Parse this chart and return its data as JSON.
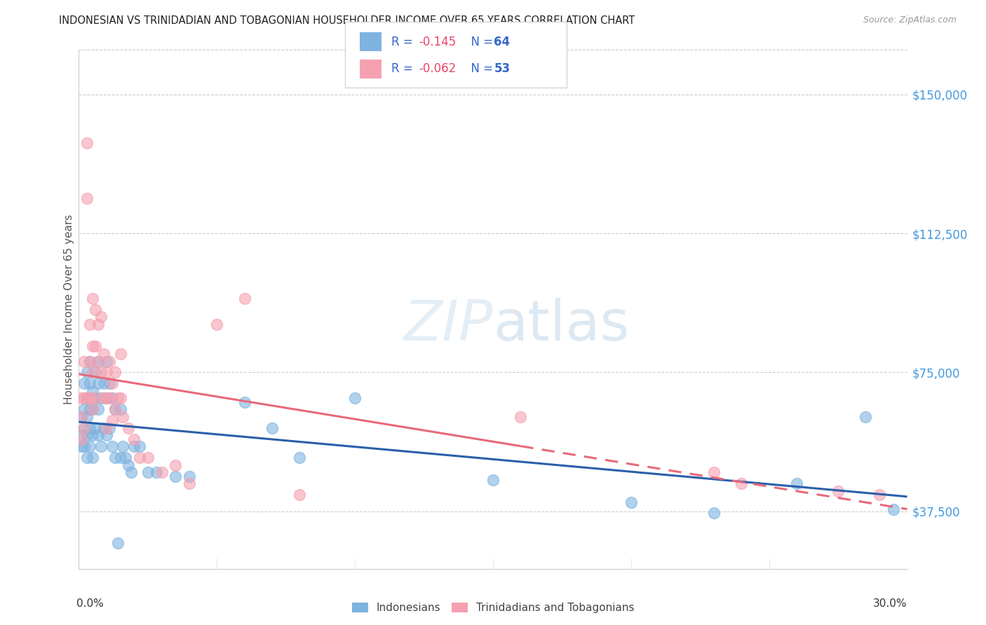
{
  "title": "INDONESIAN VS TRINIDADIAN AND TOBAGONIAN HOUSEHOLDER INCOME OVER 65 YEARS CORRELATION CHART",
  "source": "Source: ZipAtlas.com",
  "ylabel": "Householder Income Over 65 years",
  "yticks": [
    37500,
    75000,
    112500,
    150000
  ],
  "ytick_labels": [
    "$37,500",
    "$75,000",
    "$112,500",
    "$150,000"
  ],
  "xmin": 0.0,
  "xmax": 0.3,
  "ymin": 22000,
  "ymax": 162000,
  "blue_color": "#7eb3e0",
  "pink_color": "#f5a0b0",
  "blue_line_color": "#2b5faa",
  "pink_line_color": "#e8697a",
  "grid_color": "#cccccc",
  "indonesian_x": [
    0.001,
    0.001,
    0.001,
    0.002,
    0.002,
    0.002,
    0.002,
    0.003,
    0.003,
    0.003,
    0.003,
    0.003,
    0.004,
    0.004,
    0.004,
    0.004,
    0.004,
    0.005,
    0.005,
    0.005,
    0.005,
    0.006,
    0.006,
    0.006,
    0.007,
    0.007,
    0.007,
    0.007,
    0.008,
    0.008,
    0.009,
    0.009,
    0.01,
    0.01,
    0.01,
    0.011,
    0.011,
    0.012,
    0.012,
    0.013,
    0.013,
    0.014,
    0.015,
    0.015,
    0.016,
    0.017,
    0.018,
    0.019,
    0.02,
    0.022,
    0.025,
    0.028,
    0.035,
    0.04,
    0.06,
    0.07,
    0.08,
    0.1,
    0.15,
    0.2,
    0.23,
    0.26,
    0.285,
    0.295
  ],
  "indonesian_y": [
    63000,
    58000,
    55000,
    72000,
    65000,
    60000,
    55000,
    75000,
    68000,
    63000,
    58000,
    52000,
    78000,
    72000,
    65000,
    60000,
    55000,
    70000,
    65000,
    58000,
    52000,
    75000,
    68000,
    60000,
    78000,
    72000,
    65000,
    58000,
    68000,
    55000,
    72000,
    60000,
    78000,
    68000,
    58000,
    72000,
    60000,
    68000,
    55000,
    65000,
    52000,
    29000,
    65000,
    52000,
    55000,
    52000,
    50000,
    48000,
    55000,
    55000,
    48000,
    48000,
    47000,
    47000,
    67000,
    60000,
    52000,
    68000,
    46000,
    40000,
    37000,
    45000,
    63000,
    38000
  ],
  "trinidadian_x": [
    0.001,
    0.001,
    0.001,
    0.002,
    0.002,
    0.002,
    0.003,
    0.003,
    0.003,
    0.004,
    0.004,
    0.004,
    0.005,
    0.005,
    0.005,
    0.005,
    0.006,
    0.006,
    0.006,
    0.007,
    0.007,
    0.008,
    0.008,
    0.009,
    0.009,
    0.01,
    0.01,
    0.01,
    0.011,
    0.011,
    0.012,
    0.012,
    0.013,
    0.013,
    0.014,
    0.015,
    0.015,
    0.016,
    0.018,
    0.02,
    0.022,
    0.025,
    0.03,
    0.035,
    0.04,
    0.05,
    0.06,
    0.08,
    0.16,
    0.23,
    0.24,
    0.275,
    0.29
  ],
  "trinidadian_y": [
    68000,
    63000,
    57000,
    78000,
    68000,
    60000,
    137000,
    122000,
    68000,
    88000,
    78000,
    68000,
    95000,
    82000,
    75000,
    65000,
    92000,
    82000,
    68000,
    88000,
    78000,
    90000,
    75000,
    80000,
    68000,
    75000,
    68000,
    60000,
    78000,
    68000,
    72000,
    62000,
    75000,
    65000,
    68000,
    80000,
    68000,
    63000,
    60000,
    57000,
    52000,
    52000,
    48000,
    50000,
    45000,
    88000,
    95000,
    42000,
    63000,
    48000,
    45000,
    43000,
    42000
  ]
}
